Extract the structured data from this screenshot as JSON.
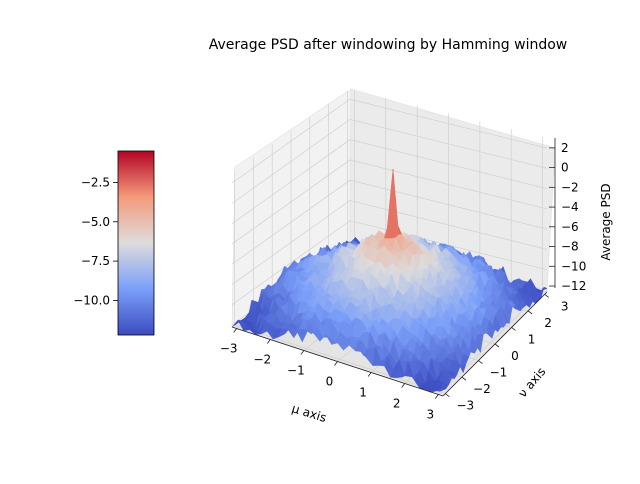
{
  "chart_data": {
    "type": "surface3d",
    "title": "Average PSD after windowing by Hamming window",
    "xlabel": "μ axis",
    "ylabel": "ν axis",
    "zlabel": "Average PSD",
    "xlim": [
      -3.14,
      3.14
    ],
    "ylim": [
      -3.14,
      3.14
    ],
    "zlim": [
      -12.2,
      3.0
    ],
    "xticks": [
      -3,
      -2,
      -1,
      0,
      1,
      2,
      3
    ],
    "yticks": [
      -3,
      -2,
      -1,
      0,
      1,
      2,
      3
    ],
    "zticks": [
      2,
      0,
      -2,
      -4,
      -6,
      -8,
      -10,
      -12
    ],
    "colormap": "coolwarm",
    "colorbar": {
      "min": -12.2,
      "max": -0.5,
      "ticks": [
        -2.5,
        -5.0,
        -7.5,
        -10.0
      ]
    },
    "surface_samples": [
      {
        "mu": 0.0,
        "nu": 0.0,
        "psd": 2.6
      },
      {
        "mu": 0.0,
        "nu": 0.8,
        "psd": -4.5
      },
      {
        "mu": 1.5,
        "nu": 0.0,
        "psd": -6.5
      },
      {
        "mu": 3.0,
        "nu": 3.0,
        "psd": -9.0
      },
      {
        "mu": -3.0,
        "nu": -3.0,
        "psd": -10.5
      },
      {
        "mu": 3.0,
        "nu": -3.0,
        "psd": -12.0
      }
    ],
    "grid": true
  }
}
